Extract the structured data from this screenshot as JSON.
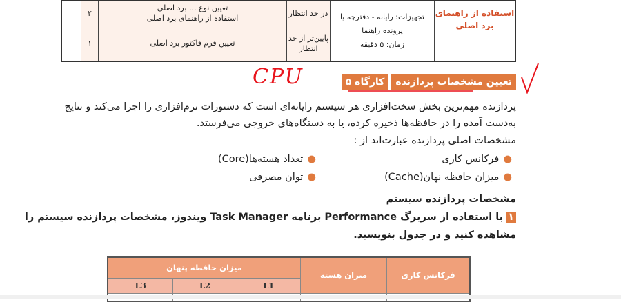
{
  "top_table": {
    "side_label": "استفاده از راهنمای برد اصلی",
    "equipment": "تجهیزات: رایانه - دفترچه یا پرونده راهنما",
    "time": "زمان: ۵ دقیقه",
    "rows": [
      {
        "level": "در حد انتظار",
        "task_cut": "تعیین نوع ... برد اصلی",
        "task": "استفاده از راهنمای برد اصلی",
        "score": "۲"
      },
      {
        "level": "پایین‌تر از حد انتظار",
        "task": "تعیین فرم فاکتور برد اصلی",
        "score": "۱"
      }
    ]
  },
  "heading": {
    "number": "کارگاه ۵",
    "title": "تعیین مشخصات پردازنده"
  },
  "annotation": {
    "handwriting": "CPU",
    "colors": {
      "ink": "#e8141c"
    }
  },
  "paragraph": [
    "پردازنده مهم‌ترین بخش سخت‌افزاری هر سیستم رایانه‌ای است که دستورات نرم‌افزاری را اجرا می‌کند و نتایج",
    "به‌دست آمده را در حافظه‌ها ذخیره کرده، یا به دستگاه‌های خروجی می‌فرستد.",
    "مشخصات اصلی پردازنده عبارت‌اند از :"
  ],
  "bullets": [
    "فرکانس کاری",
    "تعداد هسته‌ها(Core)",
    "میزان حافظه نهان(Cache)",
    "توان مصرفی"
  ],
  "subheading": "مشخصات پردازنده سیستم",
  "task": {
    "number": "۱",
    "line1": "با استفاده از سربرگ Performance برنامه Task Manager ویندوز، مشخصات پردازنده سیستم را",
    "line2": "مشاهده کنید و در جدول بنویسید."
  },
  "bottom_table": {
    "headers": [
      "فرکانس کاری",
      "میزان هسته",
      "میزان حافظه پنهان"
    ],
    "sub": [
      "L1",
      "L2",
      "L3"
    ]
  },
  "colors": {
    "accent": "#e07a3e",
    "header": "#f0a07a",
    "subheader": "#f4b8a4"
  }
}
